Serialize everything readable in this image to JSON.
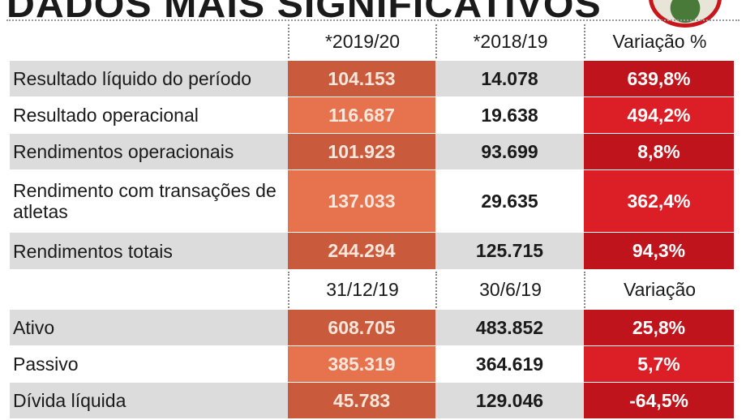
{
  "title": "DADOS MAIS SIGNIFICATIVOS",
  "colors": {
    "col1_dark": "#c95a3c",
    "col1_light": "#e6734e",
    "col3_dark": "#bf141b",
    "col3_light": "#dc1f26",
    "row_gray": "#dcdcdc"
  },
  "section1": {
    "headers": [
      "*2019/20",
      "*2018/19",
      "Variação %"
    ],
    "rows": [
      {
        "label": "Resultado líquido do período",
        "v1": "104.153",
        "v2": "14.078",
        "var": "639,8%"
      },
      {
        "label": "Resultado operacional",
        "v1": "116.687",
        "v2": "19.638",
        "var": "494,2%"
      },
      {
        "label": "Rendimentos operacionais",
        "v1": "101.923",
        "v2": "93.699",
        "var": "8,8%"
      },
      {
        "label": "Rendimento com transações de atletas",
        "v1": "137.033",
        "v2": "29.635",
        "var": "362,4%"
      },
      {
        "label": "Rendimentos totais",
        "v1": "244.294",
        "v2": "125.715",
        "var": "94,3%"
      }
    ]
  },
  "section2": {
    "headers": [
      "31/12/19",
      "30/6/19",
      "Variação"
    ],
    "rows": [
      {
        "label": "Ativo",
        "v1": "608.705",
        "v2": "483.852",
        "var": "25,8%"
      },
      {
        "label": "Passivo",
        "v1": "385.319",
        "v2": "364.619",
        "var": "5,7%"
      },
      {
        "label": "Dívida líquida",
        "v1": "45.783",
        "v2": "129.046",
        "var": "-64,5%"
      }
    ]
  }
}
